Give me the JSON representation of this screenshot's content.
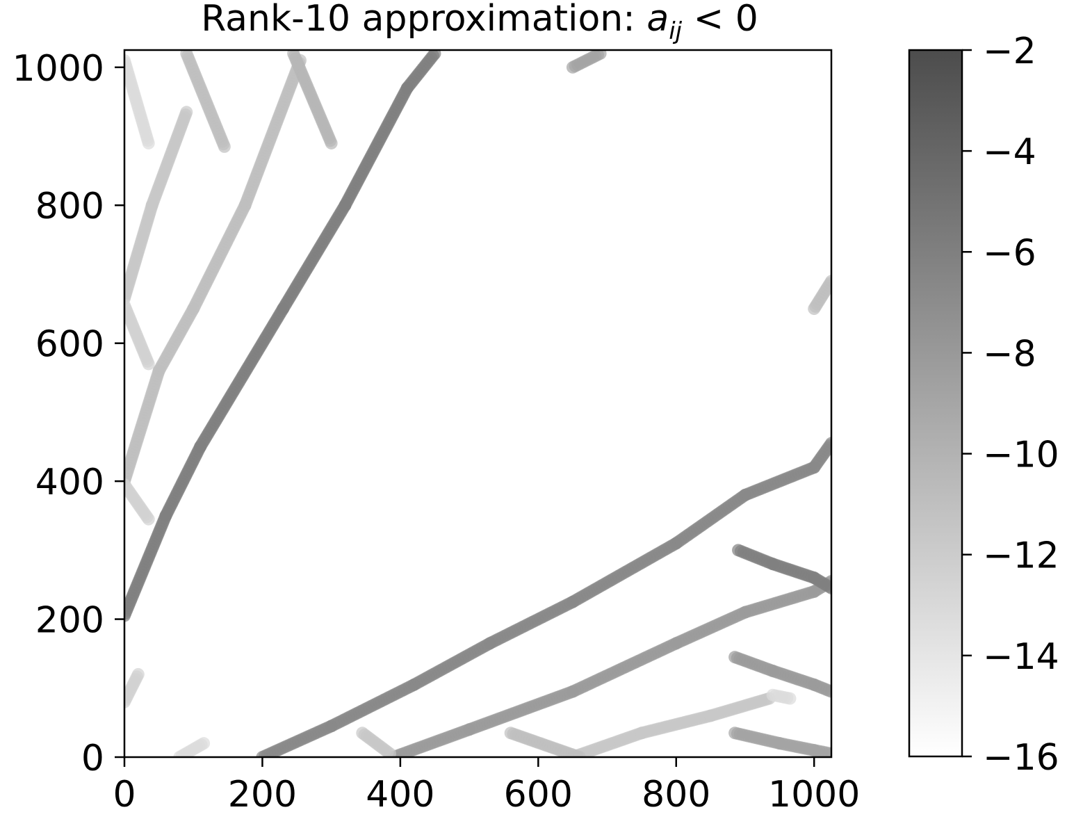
{
  "chart_data": {
    "type": "scatter",
    "title": {
      "prefix": "Rank-10 approximation: ",
      "symbol": "a",
      "subscript": "ij",
      "suffix": " < 0"
    },
    "xlabel": "",
    "ylabel": "",
    "xlim": [
      0,
      1025
    ],
    "ylim": [
      0,
      1025
    ],
    "xticks": [
      0,
      200,
      400,
      600,
      800,
      1000
    ],
    "yticks": [
      0,
      200,
      400,
      600,
      800,
      1000
    ],
    "grid": false,
    "marker": "circle",
    "colorbar": {
      "range": [
        -16,
        -2
      ],
      "ticks": [
        -2,
        -4,
        -6,
        -8,
        -10,
        -12,
        -14,
        -16
      ],
      "tick_labels": [
        "−2",
        "−4",
        "−6",
        "−8",
        "−10",
        "−12",
        "−14",
        "−16"
      ],
      "colormap": "greys",
      "color_low": "#ffffff",
      "color_high": "#000000",
      "alpha": 0.7
    },
    "series": [
      {
        "points": [
          [
            0,
            205
          ],
          [
            60,
            350
          ],
          [
            110,
            450
          ],
          [
            230,
            650
          ],
          [
            320,
            800
          ],
          [
            410,
            970
          ],
          [
            450,
            1020
          ]
        ],
        "value": -9
      },
      {
        "points": [
          [
            0,
            400
          ],
          [
            50,
            560
          ],
          [
            100,
            650
          ],
          [
            175,
            800
          ],
          [
            255,
            1010
          ]
        ],
        "value": -12.5
      },
      {
        "points": [
          [
            0,
            665
          ],
          [
            40,
            800
          ],
          [
            90,
            935
          ]
        ],
        "value": -13
      },
      {
        "points": [
          [
            0,
            1010
          ],
          [
            35,
            890
          ]
        ],
        "value": -14
      },
      {
        "points": [
          [
            90,
            1020
          ],
          [
            145,
            885
          ]
        ],
        "value": -12.5
      },
      {
        "points": [
          [
            245,
            1020
          ],
          [
            300,
            890
          ]
        ],
        "value": -12
      },
      {
        "points": [
          [
            0,
            655
          ],
          [
            35,
            570
          ]
        ],
        "value": -13.5
      },
      {
        "points": [
          [
            0,
            395
          ],
          [
            35,
            345
          ]
        ],
        "value": -13.5
      },
      {
        "points": [
          [
            0,
            80
          ],
          [
            20,
            120
          ]
        ],
        "value": -13.5
      },
      {
        "points": [
          [
            650,
            1000
          ],
          [
            690,
            1020
          ]
        ],
        "value": -11
      },
      {
        "points": [
          [
            1000,
            650
          ],
          [
            1025,
            690
          ]
        ],
        "value": -12.5
      },
      {
        "points": [
          [
            200,
            0
          ],
          [
            300,
            45
          ],
          [
            420,
            105
          ],
          [
            530,
            165
          ],
          [
            650,
            225
          ],
          [
            800,
            310
          ],
          [
            900,
            380
          ],
          [
            1000,
            420
          ],
          [
            1025,
            455
          ]
        ],
        "value": -9.5
      },
      {
        "points": [
          [
            390,
            0
          ],
          [
            500,
            40
          ],
          [
            650,
            95
          ],
          [
            800,
            165
          ],
          [
            900,
            210
          ],
          [
            1000,
            240
          ],
          [
            1025,
            255
          ]
        ],
        "value": -10.5
      },
      {
        "points": [
          [
            650,
            0
          ],
          [
            750,
            35
          ],
          [
            850,
            60
          ],
          [
            935,
            85
          ]
        ],
        "value": -13
      },
      {
        "points": [
          [
            890,
            300
          ],
          [
            940,
            280
          ],
          [
            1000,
            260
          ],
          [
            1025,
            245
          ]
        ],
        "value": -9
      },
      {
        "points": [
          [
            885,
            145
          ],
          [
            940,
            125
          ],
          [
            1000,
            105
          ],
          [
            1025,
            95
          ]
        ],
        "value": -10.5
      },
      {
        "points": [
          [
            885,
            35
          ],
          [
            950,
            20
          ],
          [
            1000,
            10
          ],
          [
            1025,
            5
          ]
        ],
        "value": -11
      },
      {
        "points": [
          [
            560,
            35
          ],
          [
            660,
            0
          ]
        ],
        "value": -12.5
      },
      {
        "points": [
          [
            345,
            35
          ],
          [
            385,
            5
          ]
        ],
        "value": -13
      },
      {
        "points": [
          [
            80,
            0
          ],
          [
            115,
            20
          ]
        ],
        "value": -14
      },
      {
        "points": [
          [
            940,
            90
          ],
          [
            965,
            85
          ]
        ],
        "value": -14
      }
    ]
  }
}
